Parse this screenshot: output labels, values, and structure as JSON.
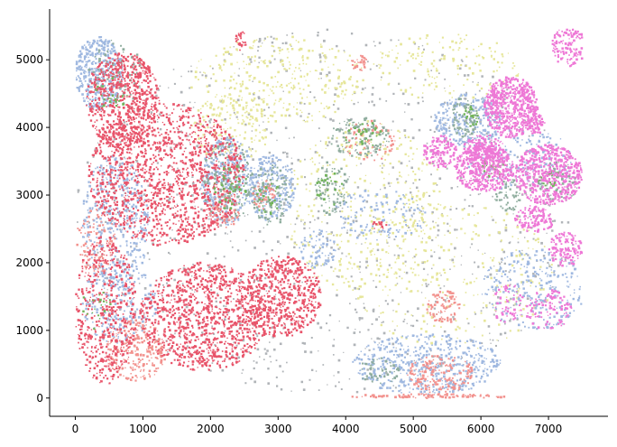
{
  "chart_data": {
    "type": "scatter",
    "title": "",
    "xlabel": "",
    "ylabel": "",
    "xlim": [
      -380,
      7880
    ],
    "ylim": [
      -270,
      5750
    ],
    "xticks": [
      0,
      1000,
      2000,
      3000,
      4000,
      5000,
      6000,
      7000
    ],
    "yticks": [
      0,
      1000,
      2000,
      3000,
      4000,
      5000
    ],
    "grid": false,
    "legend": "none",
    "series": [
      {
        "color": "#e8546a",
        "regions": [
          {
            "cx": 1350,
            "cy": 3300,
            "rx": 1150,
            "ry": 1050,
            "n": 1400
          },
          {
            "cx": 700,
            "cy": 4400,
            "rx": 550,
            "ry": 700,
            "n": 700
          },
          {
            "cx": 1900,
            "cy": 1200,
            "rx": 950,
            "ry": 800,
            "n": 1100
          },
          {
            "cx": 3050,
            "cy": 1500,
            "rx": 600,
            "ry": 600,
            "n": 600
          },
          {
            "cx": 450,
            "cy": 1300,
            "rx": 450,
            "ry": 1100,
            "n": 500
          },
          {
            "cx": 2450,
            "cy": 5280,
            "rx": 80,
            "ry": 140,
            "n": 25
          },
          {
            "cx": 4500,
            "cy": 2550,
            "rx": 120,
            "ry": 60,
            "n": 12
          }
        ]
      },
      {
        "color": "#f2928e",
        "regions": [
          {
            "cx": 900,
            "cy": 700,
            "rx": 450,
            "ry": 450,
            "n": 260
          },
          {
            "cx": 5450,
            "cy": 1350,
            "rx": 250,
            "ry": 250,
            "n": 90
          },
          {
            "cx": 5400,
            "cy": 350,
            "rx": 500,
            "ry": 280,
            "n": 170
          },
          {
            "cx": 2200,
            "cy": 2800,
            "rx": 250,
            "ry": 300,
            "n": 70
          },
          {
            "cx": 2800,
            "cy": 3000,
            "rx": 180,
            "ry": 220,
            "n": 50
          },
          {
            "cx": 4200,
            "cy": 4950,
            "rx": 120,
            "ry": 120,
            "n": 35
          },
          {
            "cx": 4350,
            "cy": 3800,
            "rx": 380,
            "ry": 300,
            "n": 60
          },
          {
            "cx": 300,
            "cy": 2300,
            "rx": 300,
            "ry": 500,
            "n": 110
          },
          {
            "cx": 5200,
            "cy": 20,
            "rx": 1150,
            "ry": 40,
            "n": 120
          }
        ]
      },
      {
        "color": "#8fad9e",
        "regions": [
          {
            "cx": 2250,
            "cy": 3200,
            "rx": 380,
            "ry": 600,
            "n": 160
          },
          {
            "cx": 2900,
            "cy": 3000,
            "rx": 300,
            "ry": 450,
            "n": 110
          },
          {
            "cx": 4200,
            "cy": 3850,
            "rx": 450,
            "ry": 300,
            "n": 120
          },
          {
            "cx": 3800,
            "cy": 3100,
            "rx": 250,
            "ry": 400,
            "n": 90
          },
          {
            "cx": 5750,
            "cy": 4150,
            "rx": 200,
            "ry": 300,
            "n": 70
          },
          {
            "cx": 6400,
            "cy": 3000,
            "rx": 200,
            "ry": 250,
            "n": 50
          },
          {
            "cx": 7150,
            "cy": 3200,
            "rx": 300,
            "ry": 300,
            "n": 70
          },
          {
            "cx": 600,
            "cy": 4800,
            "rx": 400,
            "ry": 500,
            "n": 80
          },
          {
            "cx": 4500,
            "cy": 400,
            "rx": 300,
            "ry": 200,
            "n": 50
          }
        ]
      },
      {
        "color": "#9fb8e0",
        "regions": [
          {
            "cx": 350,
            "cy": 4800,
            "rx": 350,
            "ry": 550,
            "n": 420
          },
          {
            "cx": 600,
            "cy": 2600,
            "rx": 500,
            "ry": 1000,
            "n": 400
          },
          {
            "cx": 2250,
            "cy": 3200,
            "rx": 400,
            "ry": 650,
            "n": 320
          },
          {
            "cx": 2900,
            "cy": 3100,
            "rx": 350,
            "ry": 500,
            "n": 260
          },
          {
            "cx": 5800,
            "cy": 4100,
            "rx": 500,
            "ry": 400,
            "n": 280
          },
          {
            "cx": 5200,
            "cy": 500,
            "rx": 1100,
            "ry": 450,
            "n": 520
          },
          {
            "cx": 6800,
            "cy": 1600,
            "rx": 800,
            "ry": 600,
            "n": 260
          },
          {
            "cx": 4500,
            "cy": 2700,
            "rx": 700,
            "ry": 400,
            "n": 130
          },
          {
            "cx": 3600,
            "cy": 2200,
            "rx": 300,
            "ry": 300,
            "n": 70
          },
          {
            "cx": 650,
            "cy": 1400,
            "rx": 550,
            "ry": 600,
            "n": 230
          },
          {
            "cx": 6600,
            "cy": 3500,
            "rx": 800,
            "ry": 500,
            "n": 160
          }
        ]
      },
      {
        "color": "#72b45a",
        "regions": [
          {
            "cx": 5850,
            "cy": 4150,
            "rx": 120,
            "ry": 150,
            "n": 28
          },
          {
            "cx": 6200,
            "cy": 3400,
            "rx": 200,
            "ry": 150,
            "n": 28
          },
          {
            "cx": 7000,
            "cy": 3250,
            "rx": 200,
            "ry": 120,
            "n": 26
          },
          {
            "cx": 2300,
            "cy": 3100,
            "rx": 250,
            "ry": 350,
            "n": 40
          },
          {
            "cx": 2850,
            "cy": 2950,
            "rx": 200,
            "ry": 250,
            "n": 30
          },
          {
            "cx": 4250,
            "cy": 3900,
            "rx": 300,
            "ry": 200,
            "n": 32
          },
          {
            "cx": 3750,
            "cy": 3100,
            "rx": 200,
            "ry": 300,
            "n": 26
          },
          {
            "cx": 300,
            "cy": 1300,
            "rx": 250,
            "ry": 300,
            "n": 22
          },
          {
            "cx": 550,
            "cy": 4500,
            "rx": 250,
            "ry": 250,
            "n": 22
          }
        ]
      },
      {
        "color": "#ee78d6",
        "regions": [
          {
            "cx": 6450,
            "cy": 4300,
            "rx": 400,
            "ry": 450,
            "n": 600
          },
          {
            "cx": 6050,
            "cy": 3400,
            "rx": 450,
            "ry": 350,
            "n": 500
          },
          {
            "cx": 7000,
            "cy": 3300,
            "rx": 500,
            "ry": 450,
            "n": 560
          },
          {
            "cx": 5400,
            "cy": 3650,
            "rx": 250,
            "ry": 250,
            "n": 130
          },
          {
            "cx": 7300,
            "cy": 5200,
            "rx": 250,
            "ry": 300,
            "n": 140
          },
          {
            "cx": 6800,
            "cy": 4050,
            "rx": 150,
            "ry": 150,
            "n": 70
          },
          {
            "cx": 6050,
            "cy": 3700,
            "rx": 300,
            "ry": 200,
            "n": 130
          },
          {
            "cx": 6800,
            "cy": 2650,
            "rx": 300,
            "ry": 200,
            "n": 120
          },
          {
            "cx": 7250,
            "cy": 2200,
            "rx": 250,
            "ry": 250,
            "n": 120
          },
          {
            "cx": 7000,
            "cy": 1300,
            "rx": 350,
            "ry": 300,
            "n": 100
          },
          {
            "cx": 6400,
            "cy": 1400,
            "rx": 250,
            "ry": 300,
            "n": 60
          }
        ]
      },
      {
        "color": "#e6e69a",
        "regions": [
          {
            "cx": 3000,
            "cy": 4700,
            "rx": 1300,
            "ry": 650,
            "n": 320
          },
          {
            "cx": 4300,
            "cy": 2800,
            "rx": 1200,
            "ry": 1300,
            "n": 380
          },
          {
            "cx": 5600,
            "cy": 1800,
            "rx": 1500,
            "ry": 1100,
            "n": 280
          },
          {
            "cx": 2300,
            "cy": 4000,
            "rx": 600,
            "ry": 500,
            "n": 150
          },
          {
            "cx": 5500,
            "cy": 4900,
            "rx": 1100,
            "ry": 500,
            "n": 150
          }
        ]
      },
      {
        "color": "#b0b4b8",
        "regions": [
          {
            "cx": 3750,
            "cy": 2750,
            "rx": 3750,
            "ry": 2700,
            "n": 1100
          }
        ]
      }
    ]
  }
}
